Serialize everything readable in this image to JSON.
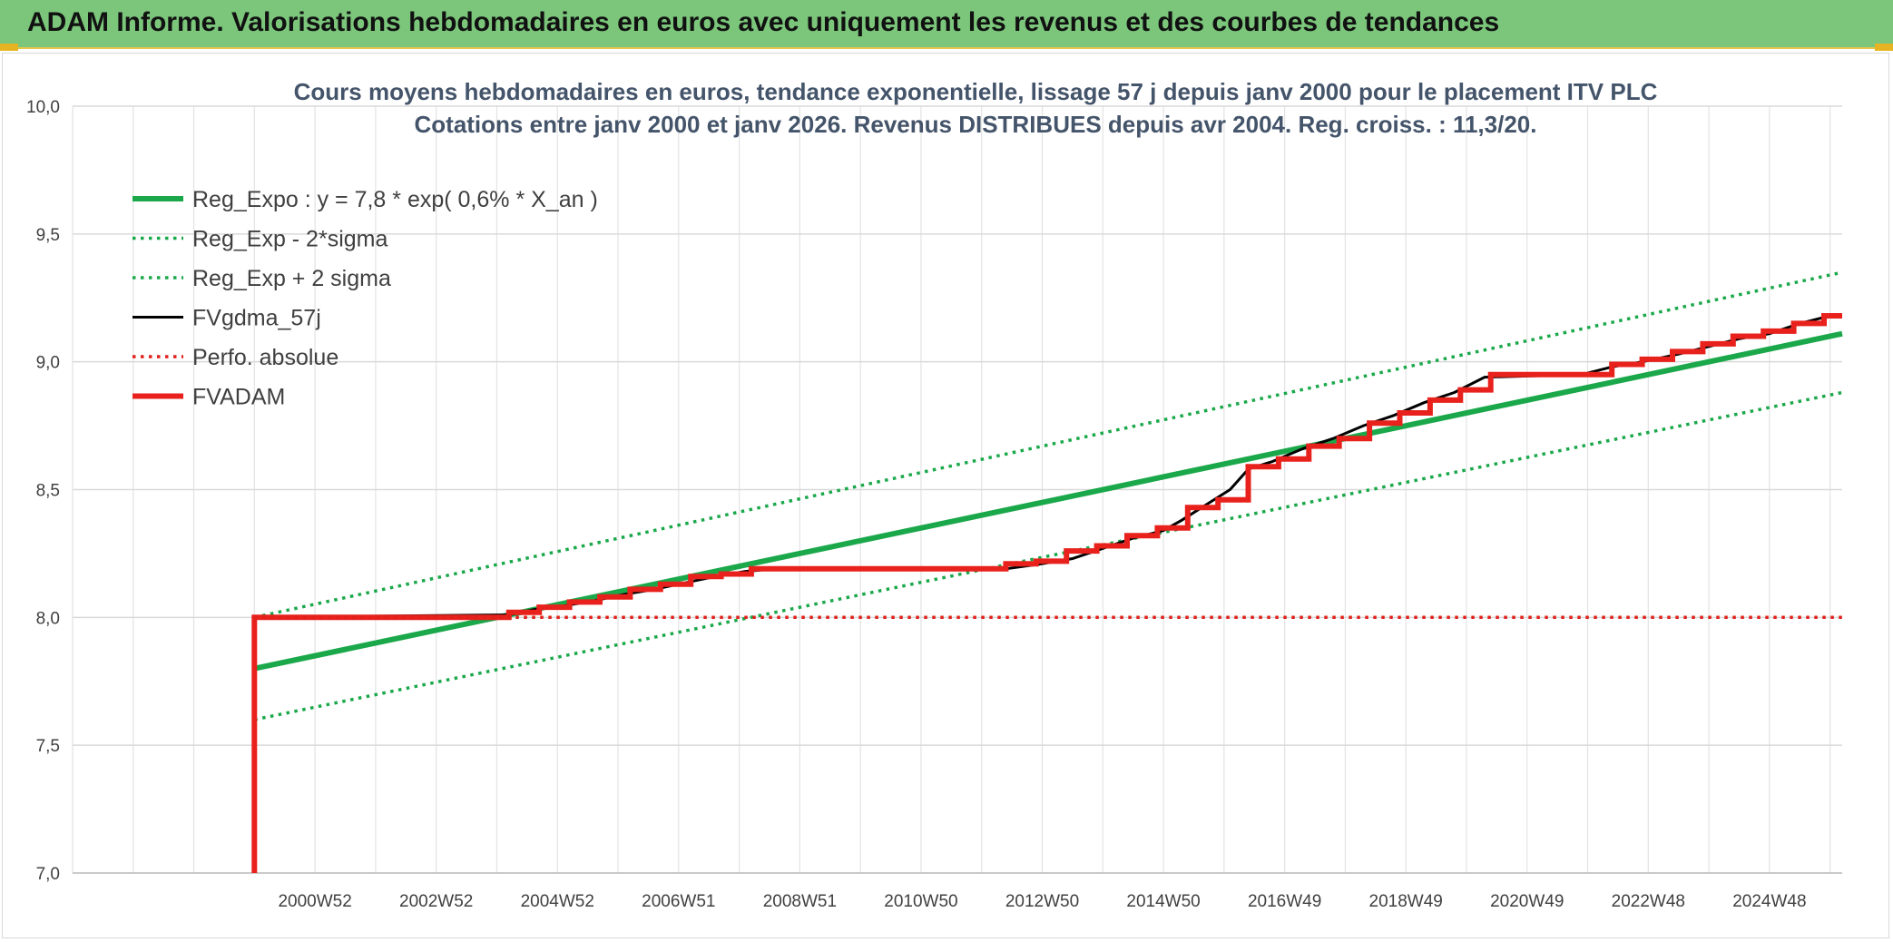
{
  "banner": {
    "title": "ADAM Informe. Valorisations hebdomadaires en euros avec uniquement les revenus et des courbes de tendances",
    "color": "#7bc67b"
  },
  "chart_data": {
    "type": "line",
    "title": "Cours moyens hebdomadaires en euros, tendance exponentielle, lissage 57 j depuis janv 2000 pour le placement ITV PLC",
    "subtitle": "Cotations entre janv 2000 et janv 2026. Revenus DISTRIBUES depuis avr 2004. Reg. croiss. : 11,3/20.",
    "xlabel": "",
    "ylabel": "",
    "ylim": [
      7.0,
      10.0
    ],
    "yticks": [
      "10,0",
      "9,5",
      "9,0",
      "8,5",
      "8,0",
      "7,5",
      "7,0"
    ],
    "ytick_values": [
      10.0,
      9.5,
      9.0,
      8.5,
      8.0,
      7.5,
      7.0
    ],
    "xlim": [
      1997.0,
      2026.2
    ],
    "xticks": [
      "2000W52",
      "2002W52",
      "2004W52",
      "2006W51",
      "2008W51",
      "2010W50",
      "2012W50",
      "2014W50",
      "2016W49",
      "2018W49",
      "2020W49",
      "2022W48",
      "2024W48"
    ],
    "xtick_values": [
      2001.0,
      2003.0,
      2005.0,
      2007.0,
      2009.0,
      2011.0,
      2013.0,
      2015.0,
      2017.0,
      2019.0,
      2021.0,
      2023.0,
      2025.0
    ],
    "grid": true,
    "legend_position": "top-left",
    "series": [
      {
        "name": "Reg_Expo : y = 7,8 * exp( 0,6% *  X_an )",
        "style": "solid-thick",
        "color": "#1aa84a",
        "x": [
          2000.0,
          2026.2
        ],
        "y": [
          7.8,
          9.11
        ]
      },
      {
        "name": "Reg_Exp - 2*sigma",
        "style": "dotted",
        "color": "#1aa84a",
        "x": [
          2000.0,
          2026.2
        ],
        "y": [
          7.6,
          8.88
        ]
      },
      {
        "name": "Reg_Exp + 2 sigma",
        "style": "dotted",
        "color": "#1aa84a",
        "x": [
          2000.0,
          2026.2
        ],
        "y": [
          8.0,
          9.35
        ]
      },
      {
        "name": "FVgdma_57j",
        "style": "solid",
        "color": "#000000",
        "x": [
          2000.0,
          2004.2,
          2004.6,
          2005.1,
          2005.6,
          2006.1,
          2006.6,
          2007.1,
          2007.6,
          2008.1,
          2008.6,
          2009.0,
          2012.4,
          2013.0,
          2013.5,
          2014.0,
          2014.5,
          2015.0,
          2015.3,
          2015.7,
          2016.1,
          2016.4,
          2016.8,
          2017.3,
          2017.8,
          2018.3,
          2018.8,
          2019.3,
          2019.8,
          2020.3,
          2021.9,
          2022.4,
          2022.9,
          2023.5,
          2024.0,
          2024.5,
          2025.0,
          2025.5,
          2026.0,
          2026.2
        ],
        "y": [
          8.0,
          8.01,
          8.03,
          8.045,
          8.065,
          8.09,
          8.11,
          8.135,
          8.16,
          8.18,
          8.19,
          8.19,
          8.19,
          8.21,
          8.23,
          8.27,
          8.31,
          8.34,
          8.38,
          8.44,
          8.5,
          8.58,
          8.61,
          8.66,
          8.7,
          8.75,
          8.79,
          8.84,
          8.88,
          8.94,
          8.95,
          8.98,
          9.0,
          9.03,
          9.06,
          9.09,
          9.11,
          9.15,
          9.18,
          9.18
        ]
      },
      {
        "name": "Perfo. absolue",
        "style": "dotted",
        "color": "#e0201a",
        "x": [
          2000.0,
          2026.2
        ],
        "y": [
          8.0,
          8.0
        ]
      },
      {
        "name": "FVADAM",
        "style": "solid-thick",
        "color": "#e8211c",
        "x": [
          2000.0,
          2000.0,
          2004.2,
          2004.2,
          2004.7,
          2004.7,
          2005.2,
          2005.2,
          2005.7,
          2005.7,
          2006.2,
          2006.2,
          2006.7,
          2006.7,
          2007.2,
          2007.2,
          2007.7,
          2007.7,
          2008.2,
          2008.2,
          2008.7,
          2008.7,
          2012.4,
          2012.4,
          2012.9,
          2012.9,
          2013.4,
          2013.4,
          2013.9,
          2013.9,
          2014.4,
          2014.4,
          2014.9,
          2014.9,
          2015.4,
          2015.4,
          2015.9,
          2015.9,
          2016.4,
          2016.4,
          2016.9,
          2016.9,
          2017.4,
          2017.4,
          2017.9,
          2017.9,
          2018.4,
          2018.4,
          2018.9,
          2018.9,
          2019.4,
          2019.4,
          2019.9,
          2019.9,
          2020.4,
          2020.4,
          2021.9,
          2021.9,
          2022.4,
          2022.4,
          2022.9,
          2022.9,
          2023.4,
          2023.4,
          2023.9,
          2023.9,
          2024.4,
          2024.4,
          2024.9,
          2024.9,
          2025.4,
          2025.4,
          2025.9,
          2025.9,
          2026.2
        ],
        "y": [
          7.0,
          8.0,
          8.0,
          8.02,
          8.02,
          8.04,
          8.04,
          8.06,
          8.06,
          8.08,
          8.08,
          8.11,
          8.11,
          8.13,
          8.13,
          8.16,
          8.16,
          8.17,
          8.17,
          8.19,
          8.19,
          8.19,
          8.19,
          8.21,
          8.21,
          8.22,
          8.22,
          8.26,
          8.26,
          8.28,
          8.28,
          8.32,
          8.32,
          8.35,
          8.35,
          8.43,
          8.43,
          8.46,
          8.46,
          8.59,
          8.59,
          8.62,
          8.62,
          8.67,
          8.67,
          8.7,
          8.7,
          8.76,
          8.76,
          8.8,
          8.8,
          8.85,
          8.85,
          8.89,
          8.89,
          8.95,
          8.95,
          8.95,
          8.95,
          8.99,
          8.99,
          9.01,
          9.01,
          9.04,
          9.04,
          9.07,
          9.07,
          9.1,
          9.1,
          9.12,
          9.12,
          9.15,
          9.15,
          9.18,
          9.18
        ]
      }
    ]
  }
}
